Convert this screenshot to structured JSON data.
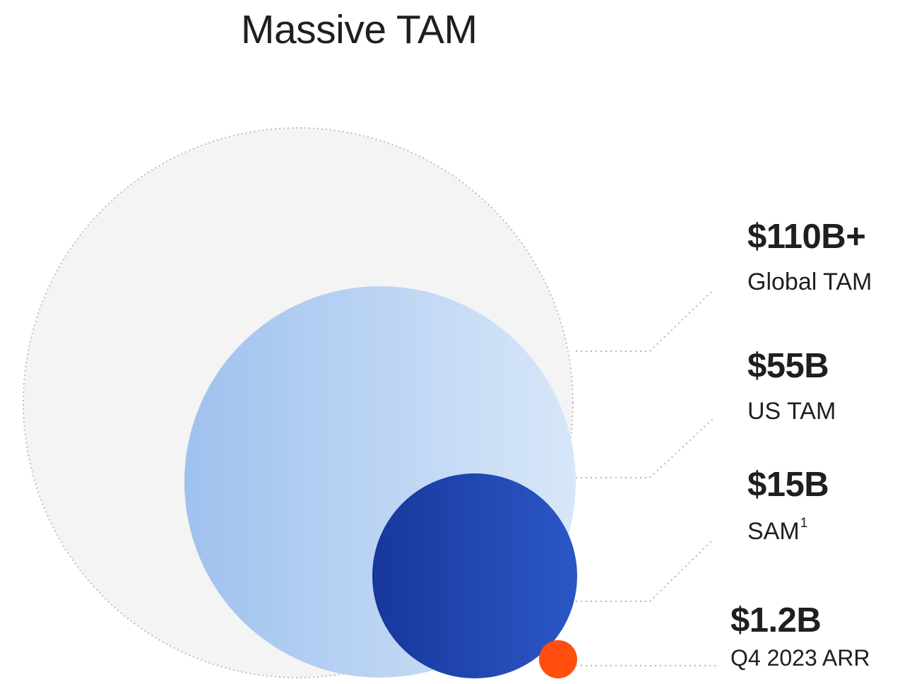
{
  "title": "Massive TAM",
  "markets": [
    {
      "value": "$110B+",
      "caption": "Global TAM"
    },
    {
      "value": "$55B",
      "caption": "US TAM"
    },
    {
      "value": "$15B",
      "caption": "SAM",
      "footnote": "1"
    },
    {
      "value": "$1.2B",
      "caption": "Q4 2023 ARR"
    }
  ],
  "colors": {
    "global_fill": "#f4f4f4",
    "us_gradient": [
      "#9fc1ee",
      "#d6e6f8"
    ],
    "sam_gradient": [
      "#1a3a9e",
      "#2a56c4"
    ],
    "arr_fill": "#ff4d0d",
    "connector": "#b5b5b5"
  }
}
